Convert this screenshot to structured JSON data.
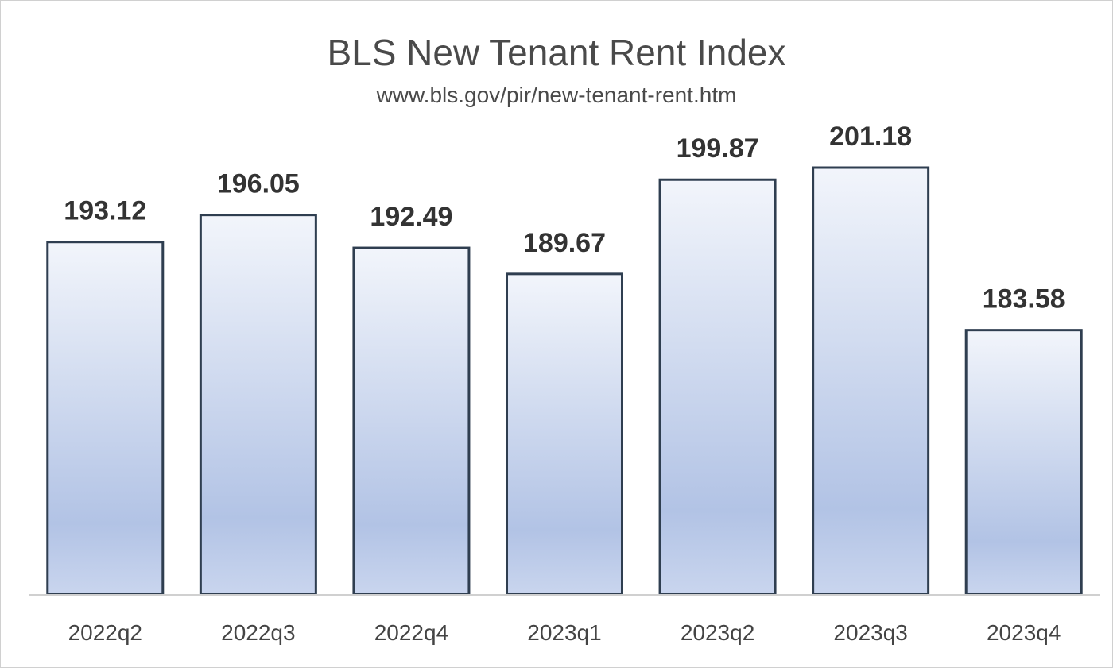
{
  "chart_data": {
    "type": "bar",
    "title": "BLS New Tenant Rent Index",
    "subtitle": "www.bls.gov/pir/new-tenant-rent.htm",
    "categories": [
      "2022q2",
      "2022q3",
      "2022q4",
      "2023q1",
      "2023q2",
      "2023q3",
      "2023q4"
    ],
    "values": [
      193.12,
      196.05,
      192.49,
      189.67,
      199.87,
      201.18,
      183.58
    ],
    "value_labels": [
      "193.12",
      "196.05",
      "192.49",
      "189.67",
      "199.87",
      "201.18",
      "183.58"
    ],
    "xlabel": "",
    "ylabel": "",
    "ylim": [
      155,
      205
    ],
    "grid": false,
    "legend": "none",
    "colors": {
      "bar_top": "#f2f5fb",
      "bar_mid": "#b2c3e5",
      "bar_bottom": "#c9d5ee",
      "bar_outline": "#2f3e50",
      "axis": "#d0d0d0"
    }
  }
}
